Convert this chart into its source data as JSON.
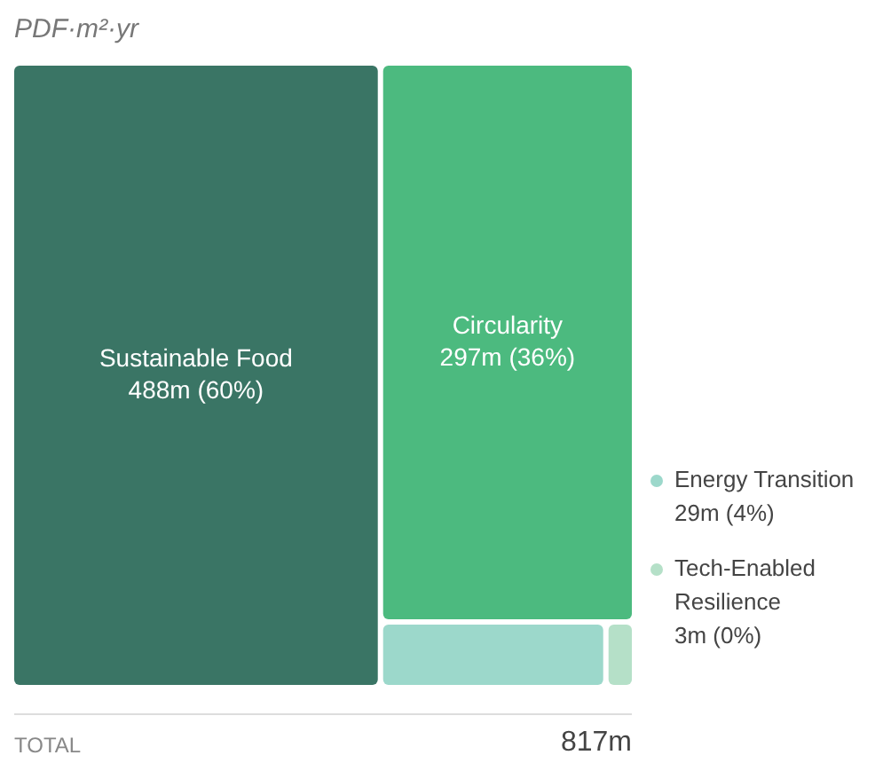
{
  "chart_data": {
    "type": "other",
    "subtitle": "PDF·m²·yr",
    "categories": [
      "Sustainable Food",
      "Circularity",
      "Energy Transition",
      "Tech-Enabled Resilience"
    ],
    "values": [
      488000000,
      297000000,
      29000000,
      3000000
    ],
    "colors": [
      "#3a7565",
      "#4cba7f",
      "#9cd8cb",
      "#b5e0c8"
    ],
    "value_labels": [
      "488m (60%)",
      "297m (36%)",
      "29m (4%)",
      "3m (0%)"
    ],
    "annotations": [
      "TOTAL",
      "817m"
    ]
  }
}
